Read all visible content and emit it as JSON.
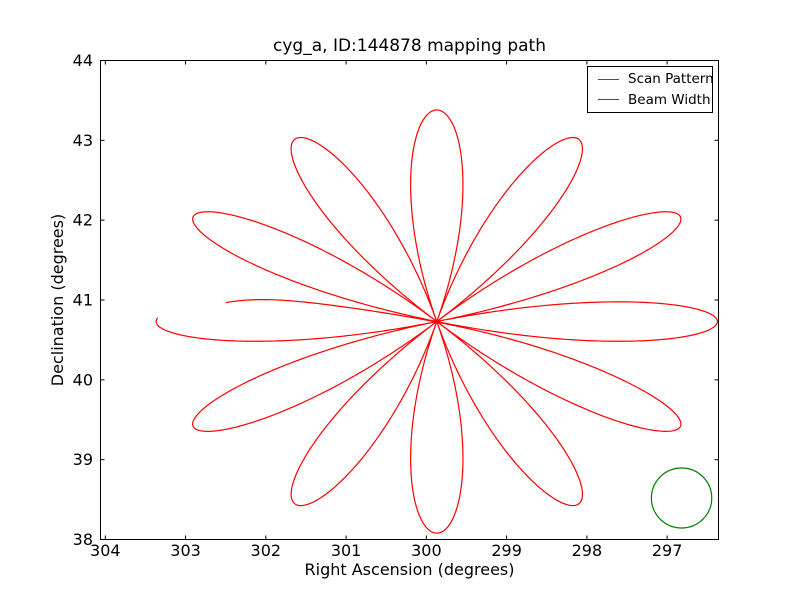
{
  "figure": {
    "background_color": "#ffffff",
    "frame_color": "#000000"
  },
  "chart_data": {
    "type": "line",
    "title": "cyg_a, ID:144878 mapping path",
    "xlabel": "Right Ascension (degrees)",
    "ylabel": "Declination (degrees)",
    "xlim": [
      304.06,
      296.36
    ],
    "ylim": [
      38,
      44
    ],
    "x_axis_inverted": true,
    "grid": false,
    "xticks": [
      "304",
      "303",
      "302",
      "301",
      "300",
      "299",
      "298",
      "297"
    ],
    "yticks": [
      "38",
      "39",
      "40",
      "41",
      "42",
      "43",
      "44"
    ],
    "legend": {
      "position": "upper right",
      "entries": [
        {
          "label": "Scan Pattern",
          "color": "#ff0000"
        },
        {
          "label": "Beam Width",
          "color": "#008000"
        }
      ]
    },
    "series": [
      {
        "name": "Scan Pattern",
        "curve": "daisy",
        "color": "#ff0000",
        "center_ra_deg": 299.87,
        "center_dec_deg": 40.73,
        "petal_radius_deg": 2.65,
        "num_petals": 12,
        "lobe_frequency": 6,
        "phase_deg": 75,
        "t_start_deg": 111.8,
        "t_end_deg": 466.0,
        "ra_stretch": 1.3195,
        "start_wiggle": {
          "amp_deg": 0.05,
          "freq": 35,
          "decay": 14
        }
      },
      {
        "name": "Beam Width",
        "curve": "circle",
        "color": "#008000",
        "center_ra_deg": 296.82,
        "center_dec_deg": 38.52,
        "radius_deg": 0.376
      }
    ]
  }
}
